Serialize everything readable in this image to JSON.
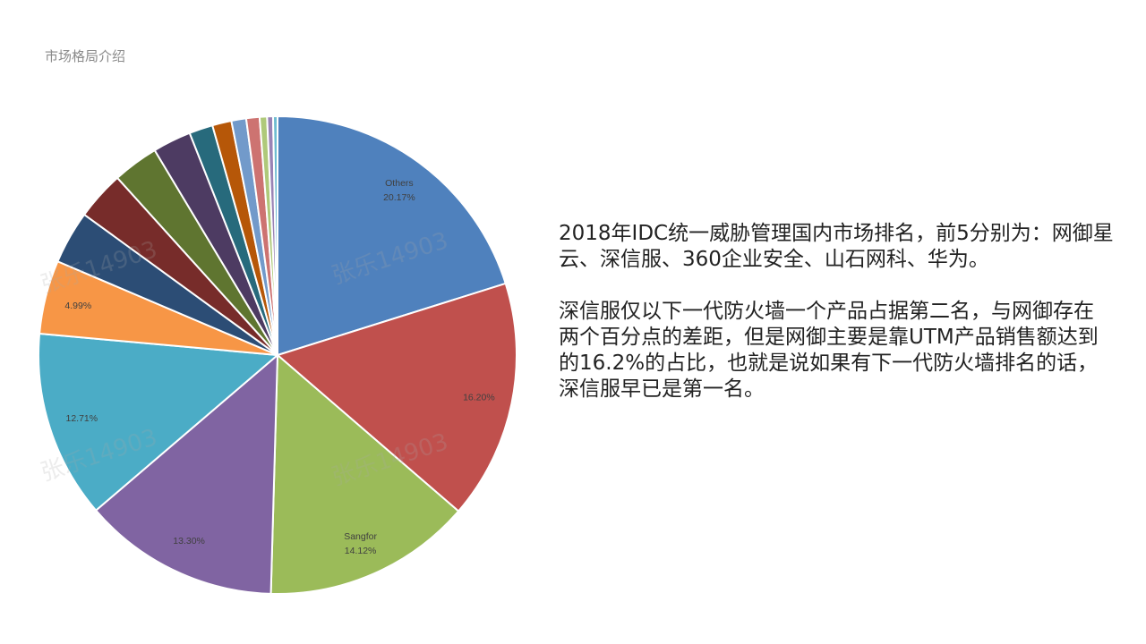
{
  "page": {
    "section_title": "市场格局介绍",
    "watermark": "张乐14903",
    "paragraph1": "2018年IDC统一威胁管理国内市场排名，前5分别为：网御星云、深信服、360企业安全、山石网科、华为。",
    "paragraph2": "深信服仅以下一代防火墙一个产品占据第二名，与网御存在两个百分点的差距，但是网御主要是靠UTM产品销售额达到的16.2%的占比，也就是说如果有下一代防火墙排名的话，深信服早已是第一名。"
  },
  "chart_data": {
    "type": "pie",
    "title": "",
    "start_angle_deg": 0,
    "direction": "clockwise",
    "slices": [
      {
        "name": "Others",
        "value": 20.17,
        "label": "Others\n20.17%",
        "color": "#4f81bd"
      },
      {
        "name": "",
        "value": 16.2,
        "label": "16.20%",
        "color": "#c0504d"
      },
      {
        "name": "Sangfor",
        "value": 14.12,
        "label": "Sangfor\n14.12%",
        "color": "#9bbb59"
      },
      {
        "name": "",
        "value": 13.3,
        "label": "13.30%",
        "color": "#8064a2"
      },
      {
        "name": "",
        "value": 12.71,
        "label": "12.71%",
        "color": "#4bacc6"
      },
      {
        "name": "",
        "value": 4.99,
        "label": "4.99%",
        "color": "#f79646"
      },
      {
        "name": "",
        "value": 3.6,
        "label": "",
        "color": "#2c4d75"
      },
      {
        "name": "",
        "value": 3.3,
        "label": "",
        "color": "#772c2a"
      },
      {
        "name": "",
        "value": 3.1,
        "label": "",
        "color": "#5f7530"
      },
      {
        "name": "",
        "value": 2.6,
        "label": "",
        "color": "#4d3b62"
      },
      {
        "name": "",
        "value": 1.6,
        "label": "",
        "color": "#276a7c"
      },
      {
        "name": "",
        "value": 1.3,
        "label": "",
        "color": "#b65708"
      },
      {
        "name": "",
        "value": 1.0,
        "label": "",
        "color": "#729aca"
      },
      {
        "name": "",
        "value": 0.9,
        "label": "",
        "color": "#cd7371"
      },
      {
        "name": "",
        "value": 0.5,
        "label": "",
        "color": "#afc97a"
      },
      {
        "name": "",
        "value": 0.4,
        "label": "",
        "color": "#9983b5"
      },
      {
        "name": "",
        "value": 0.3,
        "label": "",
        "color": "#6fbdd1"
      }
    ]
  }
}
